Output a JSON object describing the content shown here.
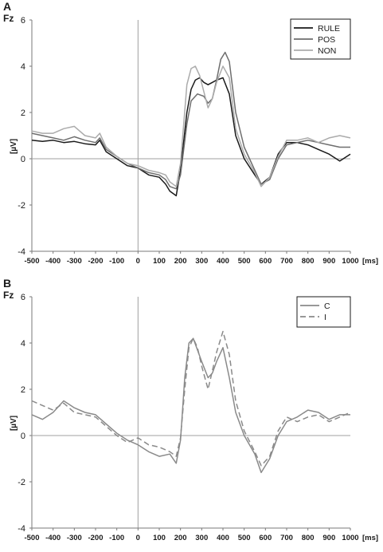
{
  "chart_data": [
    {
      "panel_label": "A",
      "type": "line",
      "channel_label": "Fz",
      "ylabel": "[µV]",
      "xunit": "[ms]",
      "xlim": [
        -500,
        1000
      ],
      "ylim": [
        -4,
        6
      ],
      "xticks": [
        -500,
        -400,
        -300,
        -200,
        -100,
        0,
        100,
        200,
        300,
        400,
        500,
        600,
        700,
        800,
        900,
        1000
      ],
      "yticks": [
        -4,
        -2,
        0,
        2,
        4,
        6
      ],
      "grid": false,
      "legend_position": "top-right",
      "series": [
        {
          "name": "RULE",
          "color": "#1a1a1a",
          "dash": "",
          "x": [
            -500,
            -450,
            -400,
            -350,
            -300,
            -250,
            -200,
            -180,
            -150,
            -100,
            -50,
            0,
            50,
            100,
            130,
            150,
            180,
            200,
            230,
            250,
            270,
            290,
            310,
            330,
            350,
            370,
            400,
            430,
            460,
            500,
            550,
            580,
            620,
            660,
            700,
            750,
            800,
            850,
            900,
            950,
            1000
          ],
          "y": [
            0.8,
            0.75,
            0.8,
            0.7,
            0.75,
            0.65,
            0.6,
            0.8,
            0.3,
            0.0,
            -0.3,
            -0.4,
            -0.7,
            -0.8,
            -1.1,
            -1.4,
            -1.6,
            -0.5,
            2.0,
            3.0,
            3.4,
            3.5,
            3.3,
            3.2,
            3.3,
            3.4,
            3.5,
            2.8,
            1.0,
            0.0,
            -0.7,
            -1.1,
            -0.8,
            0.2,
            0.7,
            0.7,
            0.6,
            0.4,
            0.2,
            -0.1,
            0.2
          ]
        },
        {
          "name": "POS",
          "color": "#6e6e6e",
          "dash": "",
          "x": [
            -500,
            -450,
            -400,
            -350,
            -300,
            -250,
            -200,
            -180,
            -150,
            -100,
            -50,
            0,
            50,
            100,
            130,
            150,
            180,
            200,
            230,
            250,
            280,
            310,
            330,
            350,
            370,
            390,
            410,
            430,
            460,
            500,
            550,
            580,
            620,
            660,
            700,
            750,
            800,
            850,
            900,
            950,
            1000
          ],
          "y": [
            1.1,
            1.0,
            0.9,
            0.8,
            0.95,
            0.8,
            0.7,
            0.9,
            0.4,
            0.1,
            -0.2,
            -0.4,
            -0.6,
            -0.7,
            -0.9,
            -1.2,
            -1.3,
            -0.7,
            1.5,
            2.5,
            2.8,
            2.7,
            2.4,
            2.6,
            3.4,
            4.3,
            4.6,
            4.2,
            2.0,
            0.5,
            -0.5,
            -1.1,
            -0.9,
            0.0,
            0.6,
            0.7,
            0.8,
            0.7,
            0.6,
            0.5,
            0.5
          ]
        },
        {
          "name": "NON",
          "color": "#ababab",
          "dash": "",
          "x": [
            -500,
            -450,
            -400,
            -350,
            -300,
            -250,
            -200,
            -180,
            -150,
            -100,
            -50,
            0,
            50,
            100,
            130,
            150,
            180,
            200,
            230,
            250,
            270,
            290,
            310,
            330,
            350,
            370,
            400,
            430,
            460,
            500,
            550,
            580,
            620,
            660,
            700,
            750,
            800,
            850,
            900,
            950,
            1000
          ],
          "y": [
            1.2,
            1.1,
            1.1,
            1.3,
            1.4,
            1.0,
            0.9,
            1.1,
            0.5,
            0.1,
            -0.2,
            -0.3,
            -0.5,
            -0.6,
            -0.7,
            -1.0,
            -1.2,
            -0.2,
            3.2,
            3.9,
            4.0,
            3.6,
            2.9,
            2.2,
            2.6,
            3.3,
            4.0,
            3.5,
            1.3,
            0.2,
            -0.6,
            -1.2,
            -0.8,
            0.1,
            0.8,
            0.8,
            0.9,
            0.7,
            0.9,
            1.0,
            0.9
          ]
        }
      ]
    },
    {
      "panel_label": "B",
      "type": "line",
      "channel_label": "Fz",
      "ylabel": "[µV]",
      "xunit": "[ms]",
      "xlim": [
        -500,
        1000
      ],
      "ylim": [
        -4,
        6
      ],
      "xticks": [
        -500,
        -400,
        -300,
        -200,
        -100,
        0,
        100,
        200,
        300,
        400,
        500,
        600,
        700,
        800,
        900,
        1000
      ],
      "yticks": [
        -4,
        -2,
        0,
        2,
        4,
        6
      ],
      "grid": false,
      "legend_position": "top-right",
      "series": [
        {
          "name": "C",
          "color": "#8a8a8a",
          "dash": "",
          "x": [
            -500,
            -450,
            -400,
            -350,
            -300,
            -250,
            -200,
            -150,
            -100,
            -50,
            0,
            50,
            100,
            150,
            180,
            200,
            220,
            240,
            260,
            280,
            300,
            330,
            350,
            370,
            400,
            430,
            460,
            500,
            550,
            580,
            620,
            660,
            700,
            750,
            800,
            850,
            900,
            950,
            1000
          ],
          "y": [
            0.9,
            0.7,
            1.0,
            1.5,
            1.2,
            1.0,
            0.9,
            0.5,
            0.1,
            -0.2,
            -0.4,
            -0.7,
            -0.9,
            -0.8,
            -1.2,
            -0.2,
            2.5,
            4.0,
            4.2,
            3.7,
            3.2,
            2.5,
            2.7,
            3.2,
            3.8,
            2.5,
            1.0,
            0.0,
            -0.8,
            -1.6,
            -1.0,
            0.0,
            0.6,
            0.8,
            1.1,
            1.0,
            0.7,
            0.9,
            0.9
          ]
        },
        {
          "name": "I",
          "color": "#8a8a8a",
          "dash": "7 4",
          "x": [
            -500,
            -450,
            -400,
            -350,
            -300,
            -250,
            -200,
            -150,
            -100,
            -50,
            0,
            50,
            100,
            150,
            180,
            200,
            220,
            240,
            260,
            280,
            300,
            330,
            350,
            370,
            400,
            430,
            460,
            500,
            550,
            580,
            620,
            660,
            700,
            750,
            800,
            850,
            900,
            950,
            1000
          ],
          "y": [
            1.5,
            1.3,
            1.1,
            1.4,
            1.0,
            0.9,
            0.8,
            0.4,
            0.0,
            -0.3,
            -0.1,
            -0.4,
            -0.5,
            -0.7,
            -0.9,
            -0.1,
            2.0,
            3.8,
            4.2,
            3.8,
            3.0,
            2.0,
            2.8,
            3.6,
            4.5,
            3.5,
            1.5,
            0.2,
            -0.7,
            -1.3,
            -0.9,
            0.2,
            0.8,
            0.6,
            0.8,
            0.9,
            0.6,
            0.8,
            1.0
          ]
        }
      ]
    }
  ]
}
